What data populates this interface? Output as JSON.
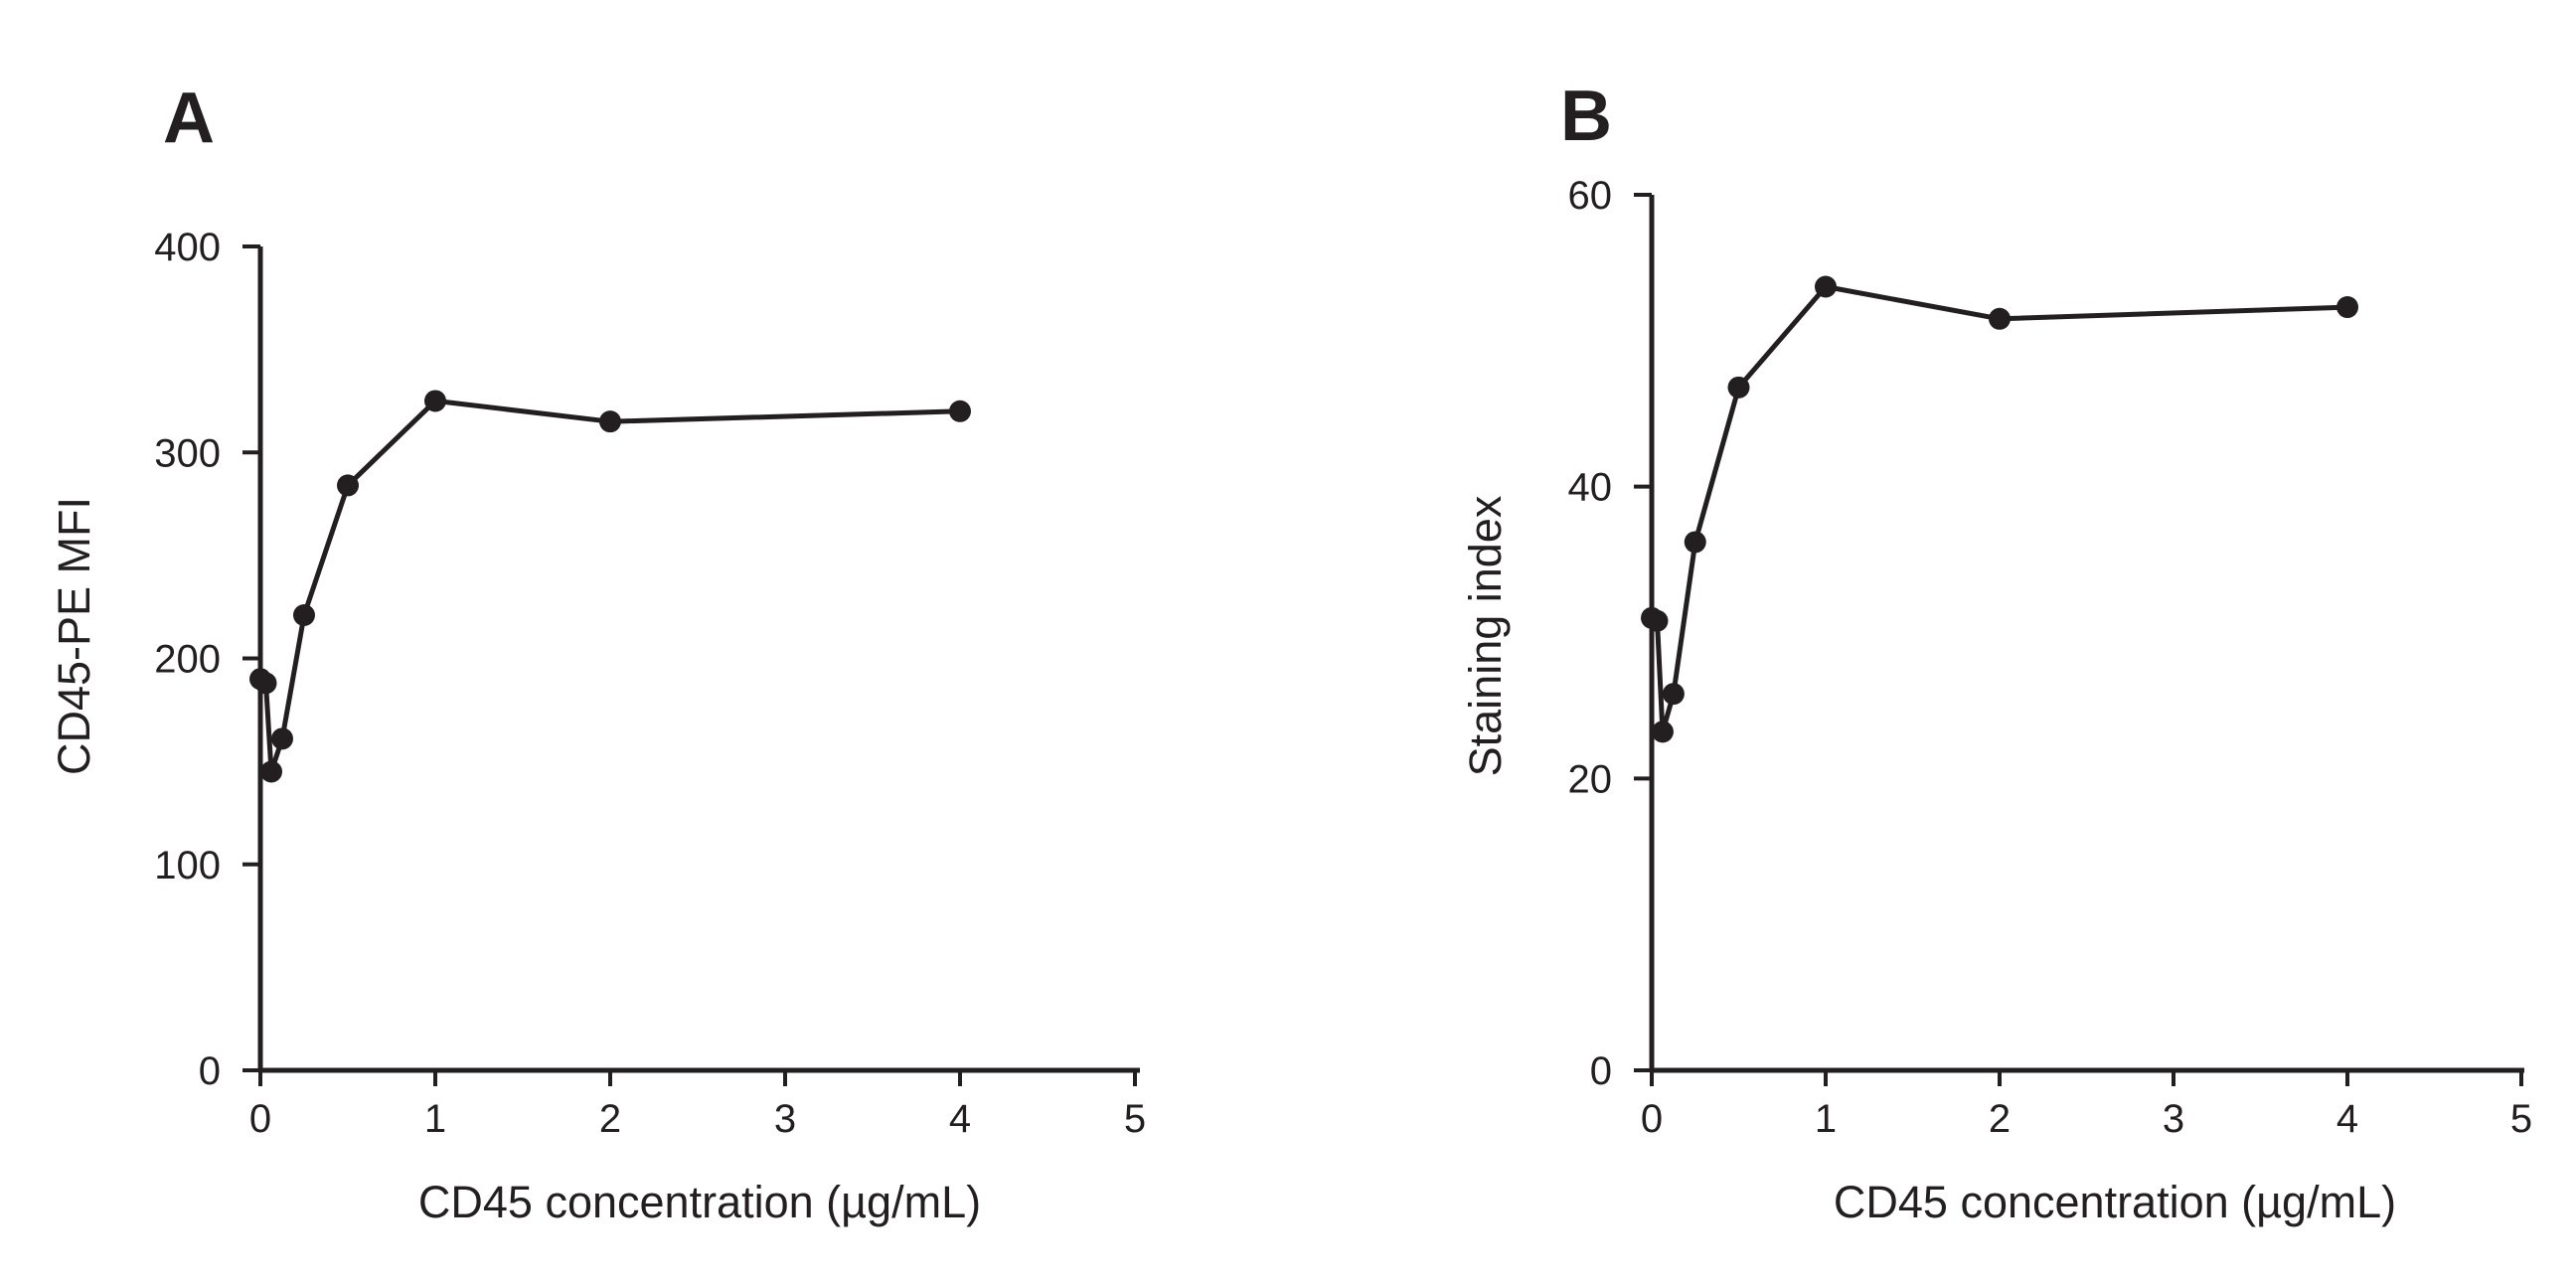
{
  "chart_data": [
    {
      "type": "line",
      "panel_label": "A",
      "title": "",
      "xlabel": "CD45 concentration (µg/mL)",
      "ylabel": "CD45-PE MFI",
      "xlim": [
        0,
        5
      ],
      "ylim": [
        0,
        400
      ],
      "x_ticks": [
        "0",
        "1",
        "2",
        "3",
        "4",
        "5"
      ],
      "y_ticks": [
        "0",
        "100",
        "200",
        "300",
        "400"
      ],
      "grid": false,
      "series": [
        {
          "name": "CD45-PE MFI",
          "x": [
            0,
            0.03125,
            0.0625,
            0.125,
            0.25,
            0.5,
            1,
            2,
            4
          ],
          "values": [
            190,
            188,
            145,
            161,
            221,
            284,
            325,
            315,
            320
          ]
        }
      ]
    },
    {
      "type": "line",
      "panel_label": "B",
      "title": "",
      "xlabel": "CD45 concentration (µg/mL)",
      "ylabel": "Staining index",
      "xlim": [
        0,
        5
      ],
      "ylim": [
        0,
        60
      ],
      "x_ticks": [
        "0",
        "1",
        "2",
        "3",
        "4",
        "5"
      ],
      "y_ticks": [
        "0",
        "20",
        "40",
        "60"
      ],
      "grid": false,
      "series": [
        {
          "name": "Staining index",
          "x": [
            0,
            0.03125,
            0.0625,
            0.125,
            0.25,
            0.5,
            1,
            2,
            4
          ],
          "values": [
            31,
            30.8,
            23.2,
            25.8,
            36.2,
            46.8,
            53.7,
            51.5,
            52.3
          ]
        }
      ]
    }
  ]
}
